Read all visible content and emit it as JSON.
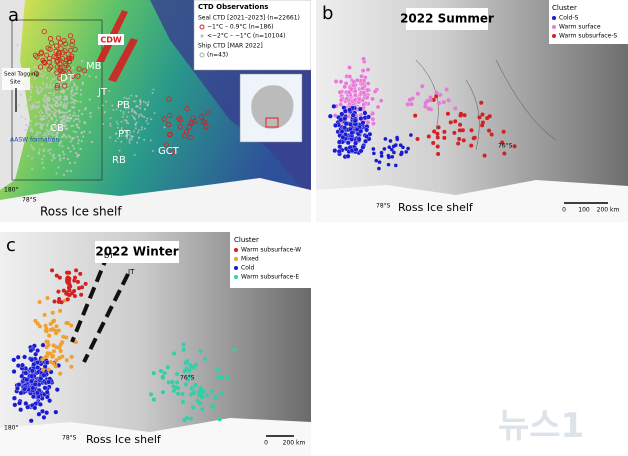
{
  "panel_a": {
    "label": "a",
    "legend_title": "CTD Observations",
    "legend_items": [
      "Seal CTD [2021–2023] (n=22661)",
      "−1°C – 0.9°C (n=186)",
      "<−2°C – −1°C (n=10104)",
      "Ship CTD [MAR 2022]",
      "(n=43)"
    ],
    "places": [
      "CDW",
      "DT",
      "MB",
      "JT",
      "PB",
      "PT",
      "CB",
      "RB",
      "GCT"
    ],
    "site_label": [
      "Seal Tagging",
      "Site"
    ],
    "aasw": "AASW formation",
    "ice_shelf": "Ross Ice shelf",
    "lat": "78°S",
    "lon": "180°"
  },
  "panel_b": {
    "label": "b",
    "season": "2022 Summer",
    "legend_title": "Cluster",
    "legend_items": [
      {
        "name": "Cold-S",
        "color": "#1a1ad0"
      },
      {
        "name": "Warm surface",
        "color": "#e67bd6"
      },
      {
        "name": "Warm subsurface-S",
        "color": "#d42020"
      }
    ],
    "ice_shelf": "Ross Ice shelf",
    "lat": "76°S",
    "lat2": "78°S",
    "scale": [
      "0",
      "100",
      "200 km"
    ]
  },
  "panel_c": {
    "label": "c",
    "season": "2022 Winter",
    "legend_title": "Cluster",
    "legend_items": [
      {
        "name": "Warm subsurface-W",
        "color": "#d42020"
      },
      {
        "name": "Mixed",
        "color": "#f0a030"
      },
      {
        "name": "Cold",
        "color": "#1a1ad0"
      },
      {
        "name": "Warm subsurface-E",
        "color": "#30d0a8"
      }
    ],
    "places": [
      "DT",
      "JT"
    ],
    "ice_shelf": "Ross Ice shelf",
    "lat": "76°S",
    "lat2": "78°S",
    "lon": "180°",
    "scale": [
      "0",
      "200 km"
    ]
  },
  "watermark": "뉴스1"
}
